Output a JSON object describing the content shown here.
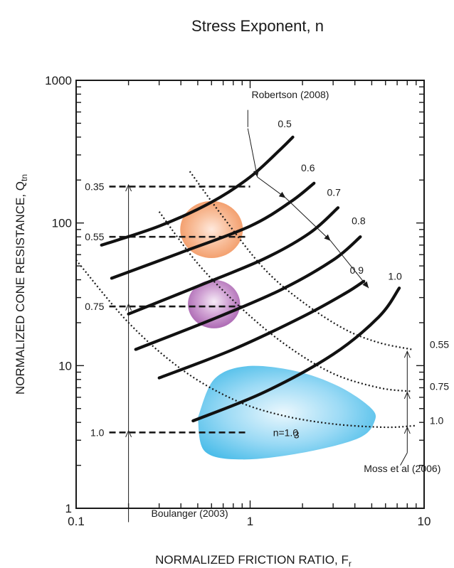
{
  "chart_data": {
    "type": "line",
    "title": "Stress Exponent, n",
    "xlabel": "NORMALIZED FRICTION RATIO, F",
    "xlabel_sub": "r",
    "ylabel": "NORMALIZED CONE RESISTANCE, Q",
    "ylabel_sub": "tn",
    "xscale": "log",
    "yscale": "log",
    "xlim": [
      0.1,
      10
    ],
    "ylim": [
      1,
      1000
    ],
    "xticks": [
      {
        "value": 0.1,
        "label": "0.1"
      },
      {
        "value": 1,
        "label": "1"
      },
      {
        "value": 10,
        "label": "10"
      }
    ],
    "yticks": [
      {
        "value": 1,
        "label": "1"
      },
      {
        "value": 10,
        "label": "10"
      },
      {
        "value": 100,
        "label": "100"
      },
      {
        "value": 1000,
        "label": "1000"
      }
    ],
    "robertson_curves": [
      {
        "label": "0.5",
        "points": [
          [
            0.14,
            70
          ],
          [
            0.3,
            95
          ],
          [
            0.6,
            140
          ],
          [
            1.0,
            210
          ],
          [
            1.5,
            330
          ],
          [
            1.76,
            400
          ]
        ],
        "label_at": [
          1.58,
          470
        ]
      },
      {
        "label": "0.6",
        "points": [
          [
            0.16,
            41
          ],
          [
            0.4,
            62
          ],
          [
            1.0,
            95
          ],
          [
            1.7,
            140
          ],
          [
            2.33,
            190
          ]
        ],
        "label_at": [
          2.15,
          230
        ]
      },
      {
        "label": "0.7",
        "points": [
          [
            0.2,
            23
          ],
          [
            0.5,
            36
          ],
          [
            1.2,
            56
          ],
          [
            2.2,
            85
          ],
          [
            3.2,
            128
          ]
        ],
        "label_at": [
          3.03,
          155
        ]
      },
      {
        "label": "0.8",
        "points": [
          [
            0.22,
            13
          ],
          [
            0.6,
            21
          ],
          [
            1.5,
            34
          ],
          [
            3.0,
            55
          ],
          [
            4.3,
            80
          ]
        ],
        "label_at": [
          4.2,
          98
        ]
      },
      {
        "label": "0.9",
        "points": [
          [
            0.3,
            8.2
          ],
          [
            0.8,
            13
          ],
          [
            2.0,
            22
          ],
          [
            3.5,
            32
          ],
          [
            4.5,
            39
          ]
        ],
        "label_at": [
          4.1,
          44
        ]
      },
      {
        "label": "1.0",
        "points": [
          [
            0.47,
            4.1
          ],
          [
            1.2,
            6.5
          ],
          [
            3.0,
            12
          ],
          [
            5.5,
            22
          ],
          [
            7.2,
            35
          ]
        ],
        "label_at": [
          6.8,
          40
        ]
      }
    ],
    "moss_curves": [
      {
        "label": "0.55",
        "points": [
          [
            0.45,
            230
          ],
          [
            0.7,
            110
          ],
          [
            1.2,
            48
          ],
          [
            2.0,
            28
          ],
          [
            3.5,
            18
          ],
          [
            5.5,
            14.5
          ],
          [
            8.5,
            13
          ]
        ],
        "label_at": [
          9.8,
          13
        ]
      },
      {
        "label": "0.75",
        "points": [
          [
            0.3,
            120
          ],
          [
            0.5,
            52
          ],
          [
            0.9,
            25
          ],
          [
            1.6,
            14
          ],
          [
            3.0,
            8.8
          ],
          [
            5.5,
            7.0
          ],
          [
            8.5,
            6.6
          ]
        ],
        "label_at": [
          9.8,
          6.6
        ]
      },
      {
        "label": "1.0",
        "points": [
          [
            0.1,
            55
          ],
          [
            0.2,
            20
          ],
          [
            0.4,
            9.5
          ],
          [
            0.8,
            5.8
          ],
          [
            1.5,
            4.5
          ],
          [
            3.0,
            3.9
          ],
          [
            6.0,
            3.7
          ],
          [
            9.0,
            3.8
          ]
        ],
        "label_at": [
          9.8,
          3.8
        ]
      }
    ],
    "boulanger_lines": [
      {
        "label": "0.35",
        "y": 180,
        "x_end": 1.0
      },
      {
        "label": "0.55",
        "y": 80,
        "x_end": 0.96
      },
      {
        "label": "0.75",
        "y": 26,
        "x_end": 0.9
      },
      {
        "label": "1.0",
        "y": 3.4,
        "x_end": 0.95
      }
    ],
    "robertson_arrow_points": [
      [
        0.97,
        460
      ],
      [
        1.1,
        210
      ],
      [
        1.6,
        150
      ],
      [
        2.9,
        75
      ],
      [
        4.8,
        35
      ]
    ],
    "regions": [
      {
        "name": "orange",
        "color": "#f6a071",
        "cx": 0.6,
        "cy": 90,
        "rx_decades": 0.18,
        "ry_decades": 0.2
      },
      {
        "name": "purple",
        "color": "#b679bd",
        "cx": 0.62,
        "cy": 27,
        "rx_decades": 0.15,
        "ry_decades": 0.17
      },
      {
        "name": "blue",
        "color": "#5cc5ee",
        "label": "n=1.0",
        "label_at": [
          1.6,
          3.2
        ]
      }
    ],
    "annotations": [
      {
        "text": "Robertson (2008)",
        "at": [
          1.0,
          750
        ]
      },
      {
        "text": "Boulanger (2003)",
        "at": [
          0.27,
          0.87
        ]
      },
      {
        "text": "Moss et al (2006)",
        "at": [
          4.5,
          1.8
        ]
      },
      {
        "text": "3",
        "at": [
          1.78,
          3.1
        ]
      }
    ],
    "grid": false,
    "legend": "none"
  }
}
